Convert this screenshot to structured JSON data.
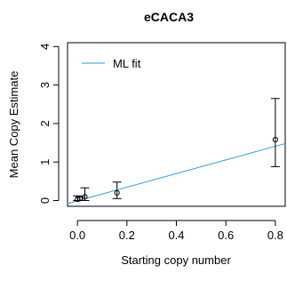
{
  "chart_data": {
    "type": "scatter",
    "title": "eCACA3",
    "xlabel": "Starting copy number",
    "ylabel": "Mean Copy Estimate",
    "xlim": [
      -0.04,
      0.84
    ],
    "ylim": [
      -0.15,
      4.1
    ],
    "x_ticks": [
      0.0,
      0.2,
      0.4,
      0.6,
      0.8
    ],
    "x_tick_labels": [
      "0.0",
      "0.2",
      "0.4",
      "0.6",
      "0.8"
    ],
    "y_ticks": [
      0,
      1,
      2,
      3,
      4
    ],
    "y_tick_labels": [
      "0",
      "1",
      "2",
      "3",
      "4"
    ],
    "grid": false,
    "legend_position": "top-left",
    "series": [
      {
        "name": "",
        "kind": "points-with-error-bars",
        "color": "#000000",
        "points": [
          {
            "x": 0.0,
            "y": 0.03,
            "err_low": 0.0,
            "err_high": 0.12
          },
          {
            "x": 0.01,
            "y": 0.05,
            "err_low": 0.0,
            "err_high": 0.1
          },
          {
            "x": 0.03,
            "y": 0.1,
            "err_low": 0.0,
            "err_high": 0.33
          },
          {
            "x": 0.16,
            "y": 0.2,
            "err_low": 0.05,
            "err_high": 0.48
          },
          {
            "x": 0.8,
            "y": 1.58,
            "err_low": 0.88,
            "err_high": 2.65
          }
        ]
      },
      {
        "name": "ML fit",
        "kind": "line",
        "color": "#3399dd",
        "x": [
          -0.04,
          0.84
        ],
        "y": [
          -0.08,
          1.48
        ]
      }
    ],
    "legend": [
      {
        "label": "ML fit",
        "color": "#3399dd"
      }
    ]
  }
}
